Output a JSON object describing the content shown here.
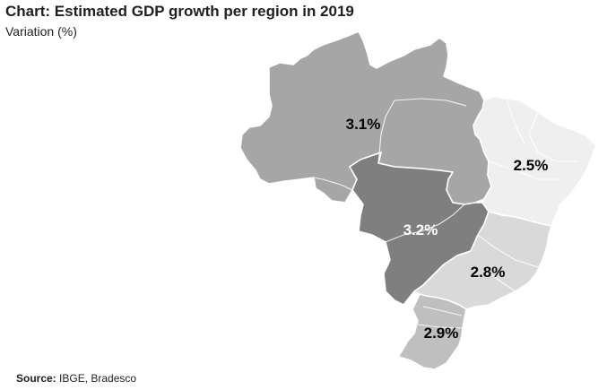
{
  "header": {
    "title": "Chart: Estimated GDP growth per region in 2019",
    "subtitle": "Variation (%)"
  },
  "source": {
    "label": "Source:",
    "text": "IBGE, Bradesco"
  },
  "colors": {
    "north": "#a6a6a6",
    "northeast": "#efefef",
    "center_west": "#7f7f7f",
    "southeast": "#d9d9d9",
    "south": "#bfbfbf",
    "border": "#ffffff"
  },
  "regions": [
    {
      "id": "north",
      "value": 3.1,
      "label": "3.1%"
    },
    {
      "id": "northeast",
      "value": 2.5,
      "label": "2.5%"
    },
    {
      "id": "center_west",
      "value": 3.2,
      "label": "3.2%"
    },
    {
      "id": "southeast",
      "value": 2.8,
      "label": "2.8%"
    },
    {
      "id": "south",
      "value": 2.9,
      "label": "2.9%"
    }
  ]
}
